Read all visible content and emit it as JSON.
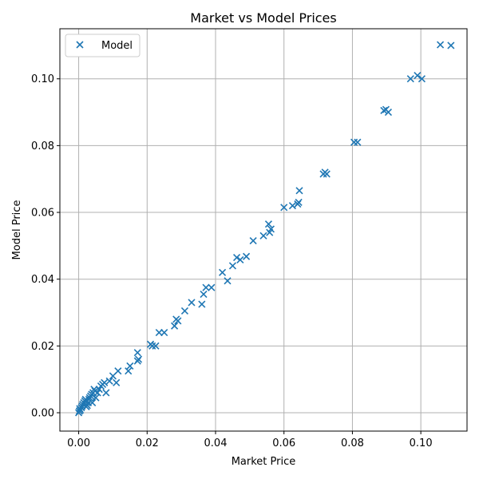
{
  "chart_data": {
    "type": "scatter",
    "title": "Market vs Model Prices",
    "xlabel": "Market Price",
    "ylabel": "Model Price",
    "xlim": [
      -0.0055,
      0.1135
    ],
    "ylim": [
      -0.0055,
      0.115
    ],
    "xticks": [
      0.0,
      0.02,
      0.04,
      0.06,
      0.08,
      0.1
    ],
    "xtick_labels": [
      "0.00",
      "0.02",
      "0.04",
      "0.06",
      "0.08",
      "0.10"
    ],
    "yticks": [
      0.0,
      0.02,
      0.04,
      0.06,
      0.08,
      0.1
    ],
    "ytick_labels": [
      "0.00",
      "0.02",
      "0.04",
      "0.06",
      "0.08",
      "0.10"
    ],
    "grid": true,
    "legend_position": "top-left",
    "color": "#1f77b4",
    "marker": "x",
    "series": [
      {
        "name": "Model",
        "points": [
          [
            0.0,
            0.0
          ],
          [
            0.0002,
            0.0005
          ],
          [
            0.0003,
            0.0012
          ],
          [
            0.0005,
            0.0008
          ],
          [
            0.0008,
            0.0015
          ],
          [
            0.001,
            0.002
          ],
          [
            0.0012,
            0.0025
          ],
          [
            0.0015,
            0.003
          ],
          [
            0.0018,
            0.0035
          ],
          [
            0.002,
            0.004
          ],
          [
            0.0022,
            0.0018
          ],
          [
            0.0025,
            0.0022
          ],
          [
            0.0028,
            0.003
          ],
          [
            0.003,
            0.004
          ],
          [
            0.0032,
            0.0045
          ],
          [
            0.0035,
            0.005
          ],
          [
            0.0038,
            0.0055
          ],
          [
            0.004,
            0.003
          ],
          [
            0.0042,
            0.006
          ],
          [
            0.0045,
            0.007
          ],
          [
            0.0048,
            0.0065
          ],
          [
            0.005,
            0.0045
          ],
          [
            0.0055,
            0.006
          ],
          [
            0.006,
            0.007
          ],
          [
            0.0065,
            0.008
          ],
          [
            0.007,
            0.0085
          ],
          [
            0.0075,
            0.009
          ],
          [
            0.008,
            0.006
          ],
          [
            0.009,
            0.0095
          ],
          [
            0.01,
            0.011
          ],
          [
            0.011,
            0.009
          ],
          [
            0.0115,
            0.0125
          ],
          [
            0.0145,
            0.0125
          ],
          [
            0.015,
            0.014
          ],
          [
            0.0172,
            0.018
          ],
          [
            0.0172,
            0.0155
          ],
          [
            0.0175,
            0.016
          ],
          [
            0.021,
            0.0205
          ],
          [
            0.0215,
            0.02
          ],
          [
            0.0225,
            0.02
          ],
          [
            0.0235,
            0.024
          ],
          [
            0.025,
            0.024
          ],
          [
            0.028,
            0.026
          ],
          [
            0.0285,
            0.028
          ],
          [
            0.029,
            0.0275
          ],
          [
            0.031,
            0.0305
          ],
          [
            0.033,
            0.033
          ],
          [
            0.036,
            0.0325
          ],
          [
            0.0365,
            0.0355
          ],
          [
            0.0372,
            0.0375
          ],
          [
            0.0388,
            0.0375
          ],
          [
            0.042,
            0.042
          ],
          [
            0.0435,
            0.0395
          ],
          [
            0.045,
            0.044
          ],
          [
            0.0462,
            0.0465
          ],
          [
            0.0472,
            0.0458
          ],
          [
            0.049,
            0.0468
          ],
          [
            0.051,
            0.0515
          ],
          [
            0.054,
            0.053
          ],
          [
            0.0555,
            0.0565
          ],
          [
            0.0558,
            0.054
          ],
          [
            0.0562,
            0.055
          ],
          [
            0.06,
            0.0615
          ],
          [
            0.0625,
            0.062
          ],
          [
            0.064,
            0.0625
          ],
          [
            0.0643,
            0.063
          ],
          [
            0.0645,
            0.0665
          ],
          [
            0.0715,
            0.0715
          ],
          [
            0.072,
            0.072
          ],
          [
            0.0725,
            0.0715
          ],
          [
            0.0805,
            0.081
          ],
          [
            0.0815,
            0.081
          ],
          [
            0.0892,
            0.0905
          ],
          [
            0.0898,
            0.0908
          ],
          [
            0.0905,
            0.09
          ],
          [
            0.097,
            0.1
          ],
          [
            0.099,
            0.101
          ],
          [
            0.1003,
            0.1
          ],
          [
            0.1057,
            0.1102
          ],
          [
            0.1088,
            0.11
          ]
        ]
      }
    ]
  }
}
